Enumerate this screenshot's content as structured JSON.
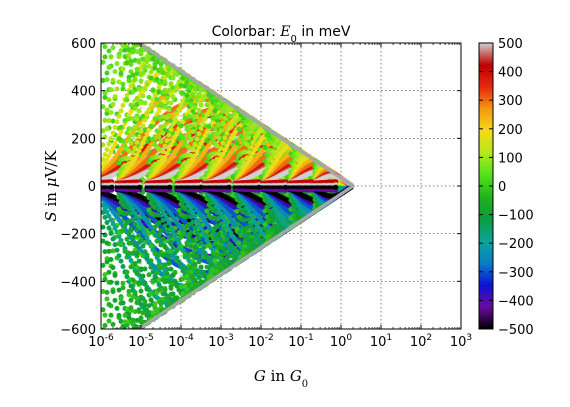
{
  "chart_data": {
    "type": "scatter",
    "title": "Colorbar: E_0 in meV",
    "title_parts": {
      "prefix": "Colorbar: ",
      "sym": "E",
      "sub": "0",
      "suffix": " in meV"
    },
    "xlabel": "G in G_0",
    "xlabel_parts": {
      "sym": "G",
      "mid": " in ",
      "sym2": "G",
      "sub": "0"
    },
    "ylabel": "S in μV/K",
    "ylabel_parts": {
      "sym": "S",
      "mid": " in ",
      "mu": "μ",
      "suffix": "V/K"
    },
    "xscale": "log",
    "xlim": [
      1e-06,
      1000
    ],
    "ylim": [
      -600,
      600
    ],
    "grid": true,
    "x_ticks": [
      {
        "base": "10",
        "exp": "-6"
      },
      {
        "base": "10",
        "exp": "-5"
      },
      {
        "base": "10",
        "exp": "-4"
      },
      {
        "base": "10",
        "exp": "-3"
      },
      {
        "base": "10",
        "exp": "-2"
      },
      {
        "base": "10",
        "exp": "-1"
      },
      {
        "base": "10",
        "exp": "0"
      },
      {
        "base": "10",
        "exp": "1"
      },
      {
        "base": "10",
        "exp": "2"
      },
      {
        "base": "10",
        "exp": "3"
      }
    ],
    "y_ticks": [
      "600",
      "400",
      "200",
      "0",
      "−200",
      "−400",
      "−600"
    ],
    "colorbar": {
      "label": "E_0 in meV",
      "range": [
        -500,
        500
      ],
      "ticks": [
        "500",
        "400",
        "300",
        "200",
        "100",
        "0",
        "−100",
        "−200",
        "−300",
        "−400",
        "−500"
      ],
      "colormap": [
        "#000000",
        "#6a0b9e",
        "#0a13d6",
        "#0a7fc6",
        "#0aa49a",
        "#0c9c3c",
        "#22b21e",
        "#52e21a",
        "#b2e81c",
        "#f4dc16",
        "#f59a10",
        "#e52a10",
        "#c00000",
        "#d0d0d0"
      ]
    },
    "envelope": {
      "color": "#a6a6a6",
      "peak_S": 594,
      "peak_S_at_G": 1e-05
    },
    "series": [
      {
        "E0_meV": -500,
        "x": [
          1e-05,
          0.0001,
          0.001,
          0.01,
          0.1,
          0.5
        ],
        "y": [
          -5,
          -5,
          -5,
          -5,
          -5,
          -5
        ]
      },
      {
        "E0_meV": 500,
        "x": [
          1e-05,
          0.0001,
          0.001,
          0.01,
          0.1,
          0.5
        ],
        "y": [
          5,
          5,
          5,
          5,
          5,
          5
        ]
      }
    ]
  }
}
